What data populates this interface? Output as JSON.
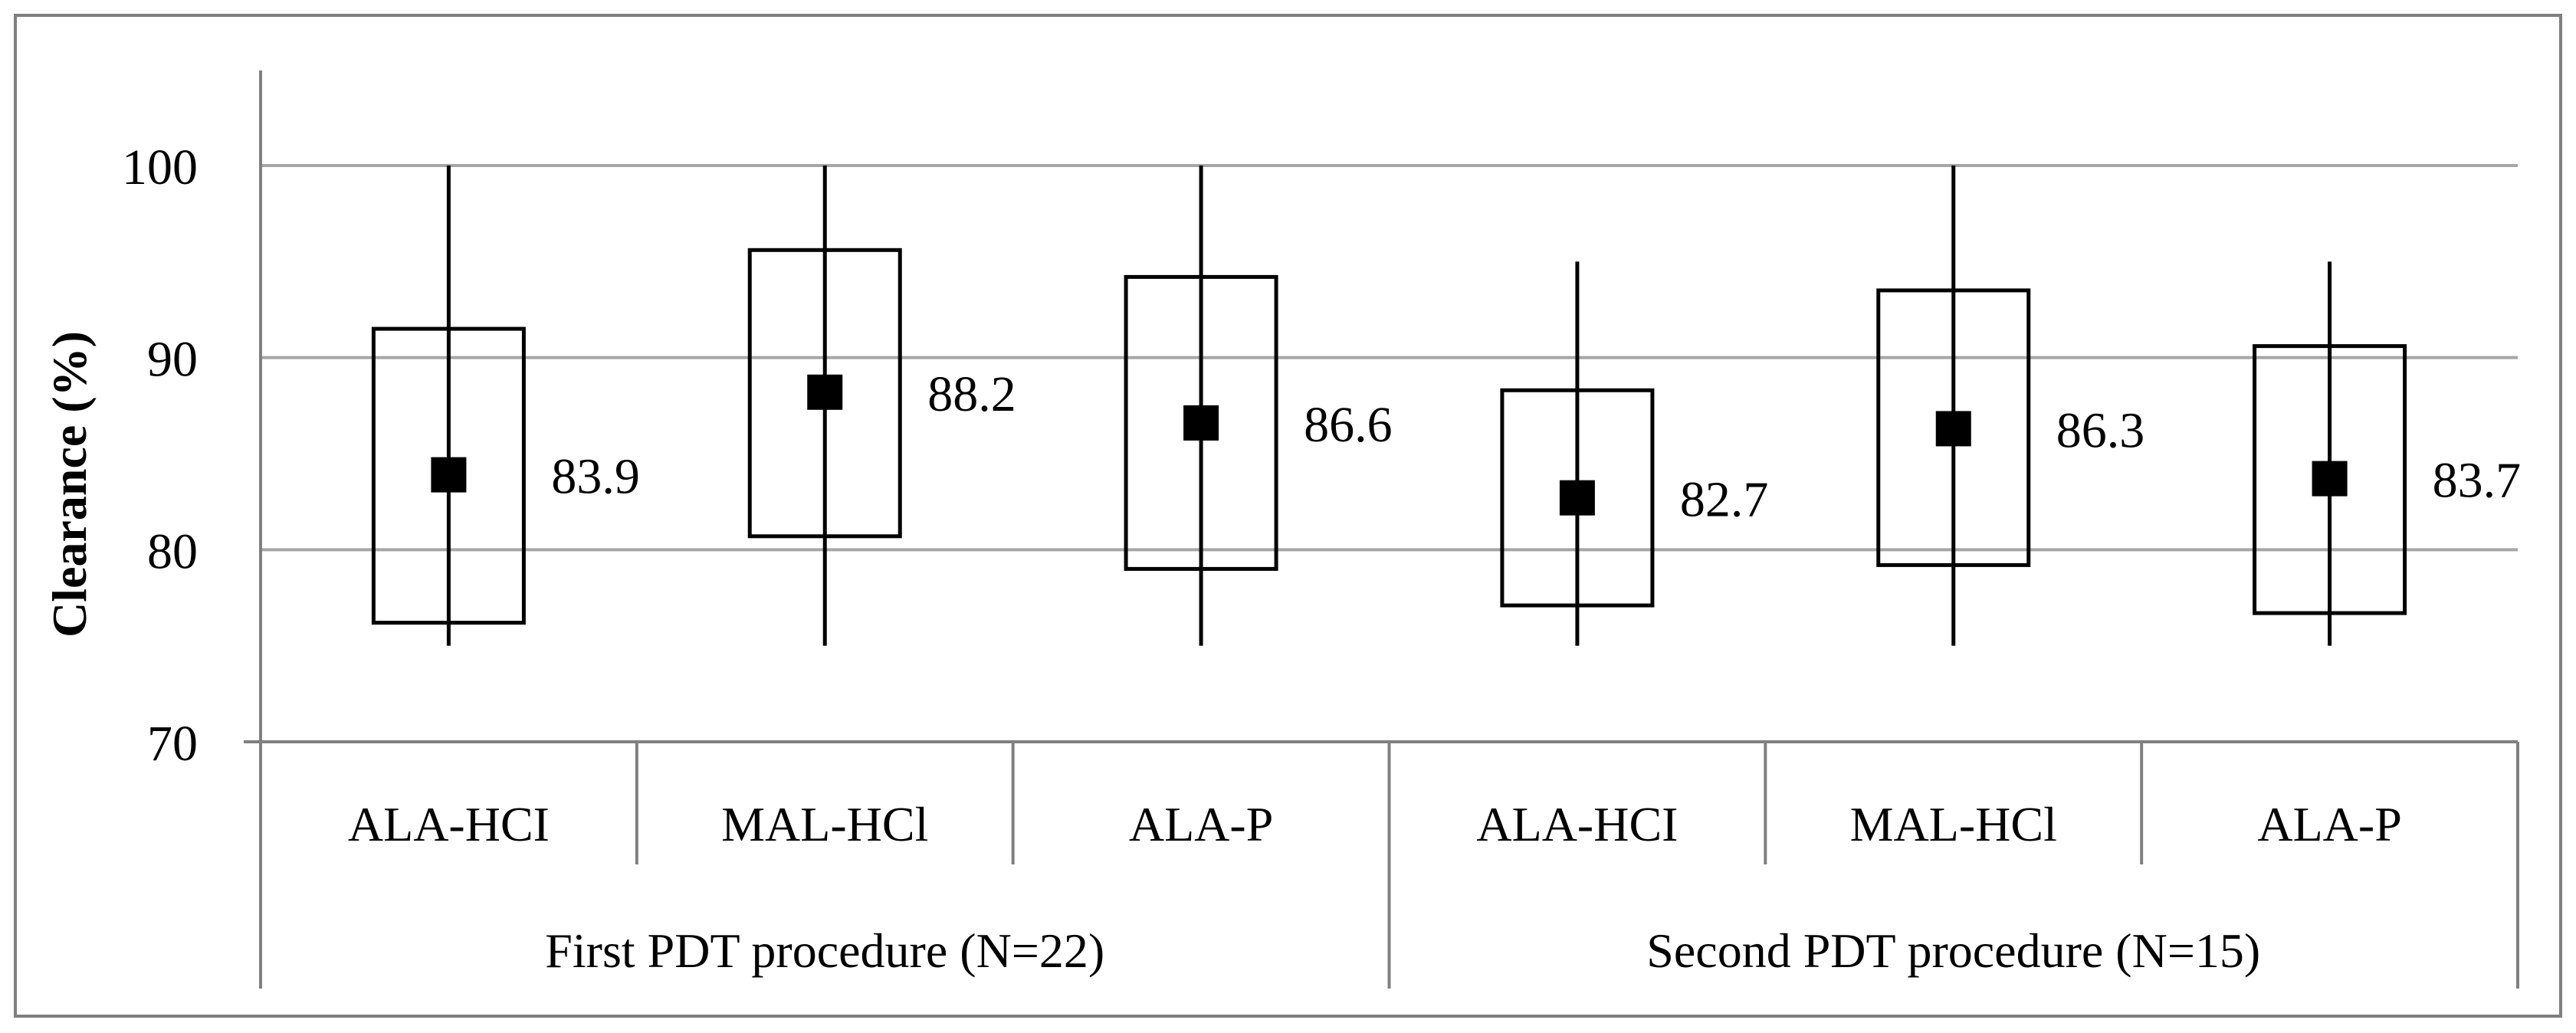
{
  "chart_data": {
    "type": "box",
    "ylabel": "Clearance (%)",
    "ylim": [
      70,
      100
    ],
    "yticks": [
      70,
      80,
      90,
      100
    ],
    "grid": true,
    "groups": [
      {
        "label": "First PDT procedure (N=22)",
        "categories": [
          {
            "label": "ALA-HCI",
            "mean": 83.9,
            "mean_label": "83.9",
            "box_low": 76.2,
            "box_high": 91.5,
            "whisker_low": 75,
            "whisker_high": 100
          },
          {
            "label": "MAL-HCl",
            "mean": 88.2,
            "mean_label": "88.2",
            "box_low": 80.7,
            "box_high": 95.6,
            "whisker_low": 75,
            "whisker_high": 100
          },
          {
            "label": "ALA-P",
            "mean": 86.6,
            "mean_label": "86.6",
            "box_low": 79.0,
            "box_high": 94.2,
            "whisker_low": 75,
            "whisker_high": 100
          }
        ]
      },
      {
        "label": "Second PDT procedure (N=15)",
        "categories": [
          {
            "label": "ALA-HCI",
            "mean": 82.7,
            "mean_label": "82.7",
            "box_low": 77.1,
            "box_high": 88.3,
            "whisker_low": 75,
            "whisker_high": 95
          },
          {
            "label": "MAL-HCl",
            "mean": 86.3,
            "mean_label": "86.3",
            "box_low": 79.2,
            "box_high": 93.5,
            "whisker_low": 75,
            "whisker_high": 100
          },
          {
            "label": "ALA-P",
            "mean": 83.7,
            "mean_label": "83.7",
            "box_low": 76.7,
            "box_high": 90.6,
            "whisker_low": 75,
            "whisker_high": 95
          }
        ]
      }
    ]
  },
  "colors": {
    "border": "#7f7f7f",
    "grid": "#a6a6a6",
    "axis": "#808080",
    "mark": "#000000",
    "background": "#ffffff"
  }
}
